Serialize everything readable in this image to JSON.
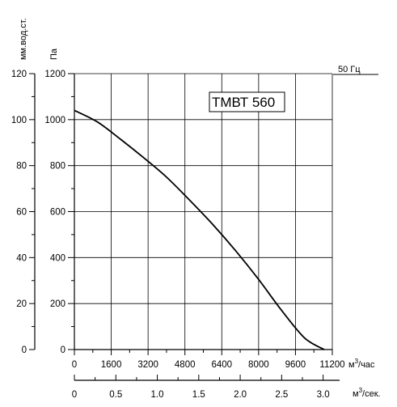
{
  "chart_data": {
    "type": "line",
    "title": "",
    "model_label": "ТМВТ 560",
    "frequency_label": "50 Гц",
    "y_primary": {
      "label": "Па",
      "range": [
        0,
        1200
      ],
      "ticks": [
        0,
        200,
        400,
        600,
        800,
        1000,
        1200
      ]
    },
    "y_secondary": {
      "label": "мм.вод.ст.",
      "range": [
        0,
        120
      ],
      "ticks": [
        0,
        20,
        40,
        60,
        80,
        100,
        120
      ]
    },
    "x_primary": {
      "unit": "м³/час",
      "unit_base": "м",
      "unit_sup": "3",
      "unit_tail": "/час",
      "range": [
        0,
        11200
      ],
      "ticks": [
        0,
        1600,
        3200,
        4800,
        6400,
        8000,
        9600,
        11200
      ]
    },
    "x_secondary": {
      "unit": "м³/сек.",
      "unit_base": "м",
      "unit_sup": "3",
      "unit_tail": "/сек.",
      "range": [
        0,
        3.111
      ],
      "ticks": [
        0,
        0.5,
        1.0,
        1.5,
        2.0,
        2.5,
        3.0
      ],
      "tick_labels": [
        "0",
        "0.5",
        "1.0",
        "1.5",
        "2.0",
        "2.5",
        "3.0"
      ]
    },
    "grid": true,
    "series": [
      {
        "name": "",
        "x": [
          0,
          1000,
          2000,
          3000,
          4000,
          5000,
          6000,
          7000,
          8000,
          9000,
          10000,
          10850
        ],
        "y": [
          1040,
          990,
          915,
          835,
          750,
          650,
          545,
          430,
          305,
          170,
          50,
          0
        ]
      }
    ]
  }
}
